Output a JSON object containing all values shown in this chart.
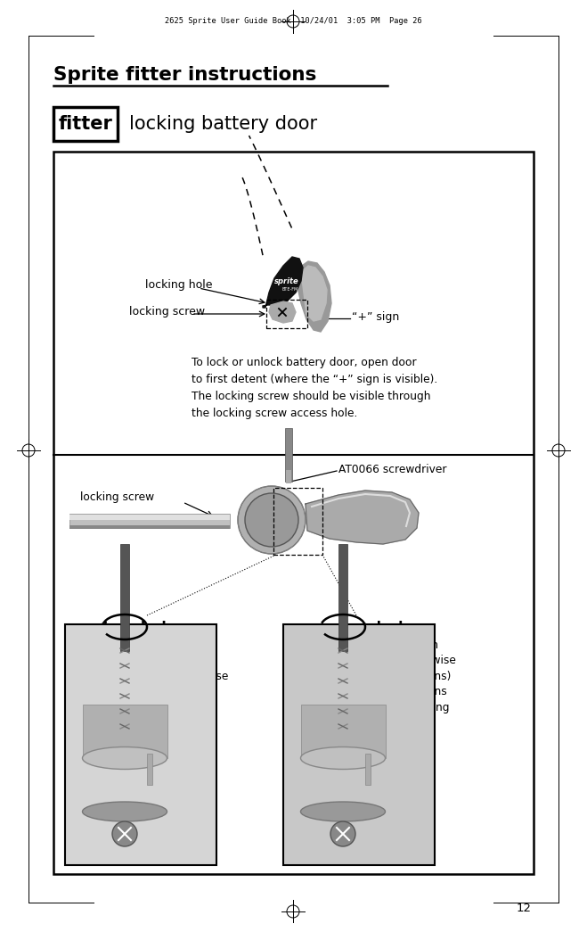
{
  "page_header": "2625 Sprite User Guide Book  10/24/01  3:05 PM  Page 26",
  "page_number": "12",
  "title": "Sprite fitter instructions",
  "subtitle_box": "fitter",
  "subtitle_text": "locking battery door",
  "label_locking_hole": "locking hole",
  "label_locking_screw_top": "locking screw",
  "label_plus_sign": "“+” sign",
  "label_at0066": "AT0066 screwdriver",
  "label_locking_screw_mid": "locking screw",
  "label_lock": "lock",
  "label_unlock": "unlock",
  "text_lock_desc": "To lock, turn\nthe locking\nscrew clockwise\nuntil it turns\nno further",
  "text_unlock_desc": "To unlock, turn\ncounter-clockwise\n(about 2-3 turns)\nuntil door opens\nwithout catching",
  "text_instruction": "To lock or unlock battery door, open door\nto first detent (where the “+” sign is visible).\nThe locking screw should be visible through\nthe locking screw access hole.",
  "bg_color": "#ffffff",
  "text_color": "#000000"
}
